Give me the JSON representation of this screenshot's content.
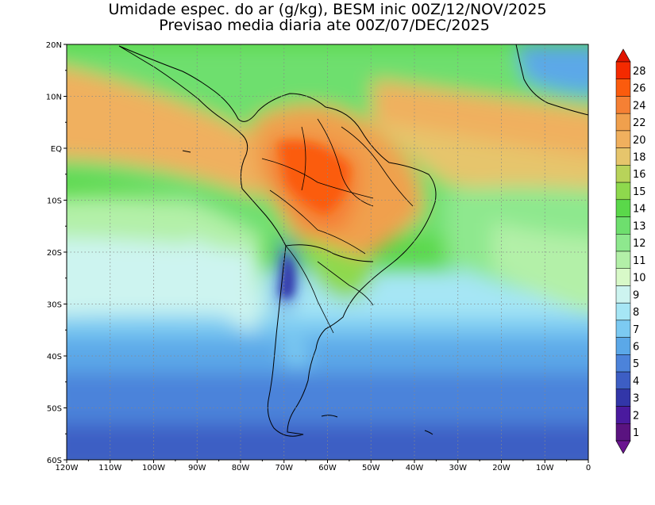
{
  "title": {
    "line1": "Umidade espec. do ar (g/kg), BESM inic 00Z/12/NOV/2025",
    "line2": "Previsao media diaria ate 00Z/07/DEC/2025"
  },
  "axes": {
    "lon_labels": [
      "120W",
      "110W",
      "100W",
      "90W",
      "80W",
      "70W",
      "60W",
      "50W",
      "40W",
      "30W",
      "20W",
      "10W",
      "0"
    ],
    "lat_labels": [
      "20N",
      "10N",
      "EQ",
      "10S",
      "20S",
      "30S",
      "40S",
      "50S",
      "60S"
    ],
    "lon_range": [
      -120,
      0
    ],
    "lat_range": [
      -60,
      20
    ],
    "grid": "dotted"
  },
  "colorbar": {
    "labels": [
      "28",
      "26",
      "24",
      "22",
      "20",
      "18",
      "16",
      "15",
      "14",
      "13",
      "12",
      "11",
      "10",
      "9",
      "8",
      "7",
      "6",
      "5",
      "4",
      "3",
      "2",
      "1"
    ],
    "colors": [
      "#f42a00",
      "#fb5b0d",
      "#f58034",
      "#f0a04d",
      "#f0b05e",
      "#e6c56c",
      "#b8d35a",
      "#8ed94d",
      "#5ad84a",
      "#6edf6e",
      "#8ee88e",
      "#b3f0a8",
      "#d8f9c8",
      "#cdf4f0",
      "#a6e6f5",
      "#7ccaf2",
      "#5ba8e8",
      "#4c83da",
      "#3d5ec4",
      "#3236a8",
      "#4a1a9e",
      "#5a1380"
    ],
    "top_arrow_color": "#e01400",
    "bottom_arrow_color": "#6a1590"
  }
}
